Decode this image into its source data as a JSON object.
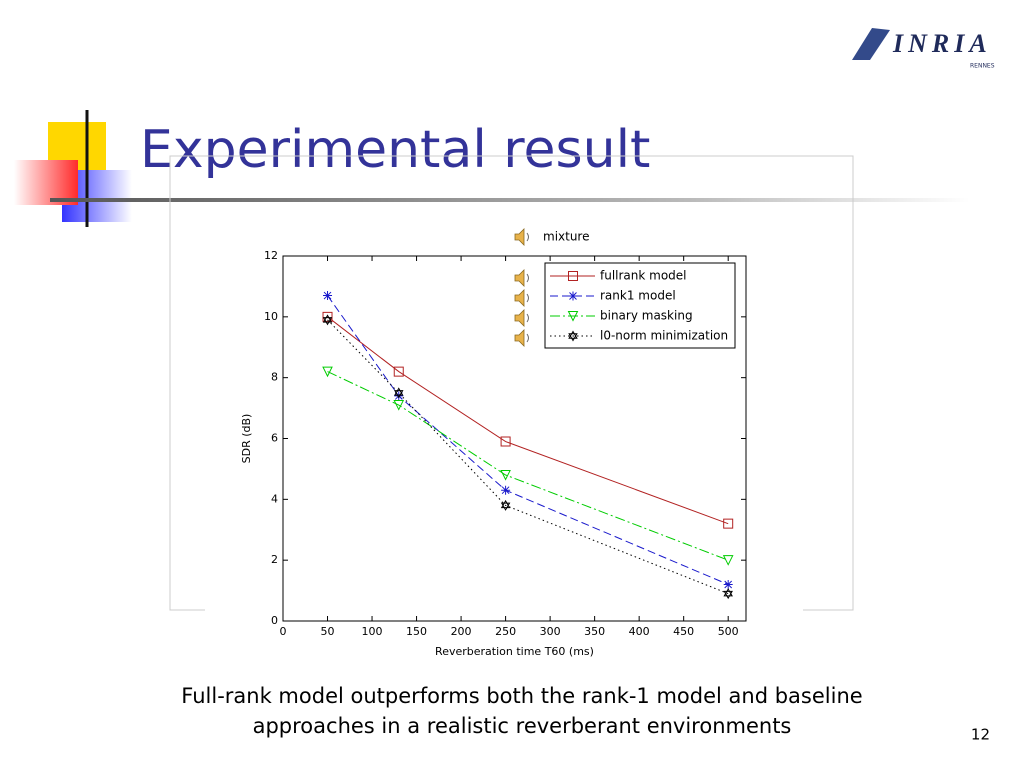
{
  "slide": {
    "title": "Experimental result",
    "logo": "INRIA",
    "logo_sub": "RENNES",
    "audio_label": "mixture",
    "caption": [
      "Full-rank model outperforms both the rank-1 model and baseline",
      "approaches in a realistic reverberant environments"
    ],
    "page_number": "12"
  },
  "chart_data": {
    "type": "line",
    "x_label": "Reverberation time T60 (ms)",
    "y_label": "SDR (dB)",
    "x": [
      50,
      130,
      250,
      500
    ],
    "series": [
      {
        "name": "fullrank model",
        "color": "#b22222",
        "marker": "square",
        "dash": "none",
        "values": [
          10.0,
          8.2,
          5.9,
          3.2
        ]
      },
      {
        "name": "rank1 model",
        "color": "#1a1acc",
        "marker": "star",
        "dash": "8 4",
        "values": [
          10.7,
          7.4,
          4.3,
          1.2
        ]
      },
      {
        "name": "binary masking",
        "color": "#00cc00",
        "marker": "triangle-down",
        "dash": "10 3 2 3",
        "values": [
          8.2,
          7.1,
          4.8,
          2.0
        ]
      },
      {
        "name": "l0-norm minimization",
        "color": "#000000",
        "marker": "hexagram",
        "dash": "1.5 3",
        "values": [
          9.9,
          7.5,
          3.8,
          0.9
        ]
      }
    ],
    "xlim": [
      0,
      520
    ],
    "xticks": [
      0,
      50,
      100,
      150,
      200,
      250,
      300,
      350,
      400,
      450,
      500
    ],
    "ylim": [
      0,
      12
    ],
    "yticks": [
      0,
      2,
      4,
      6,
      8,
      10,
      12
    ],
    "legend": "upper right",
    "grid": false
  }
}
